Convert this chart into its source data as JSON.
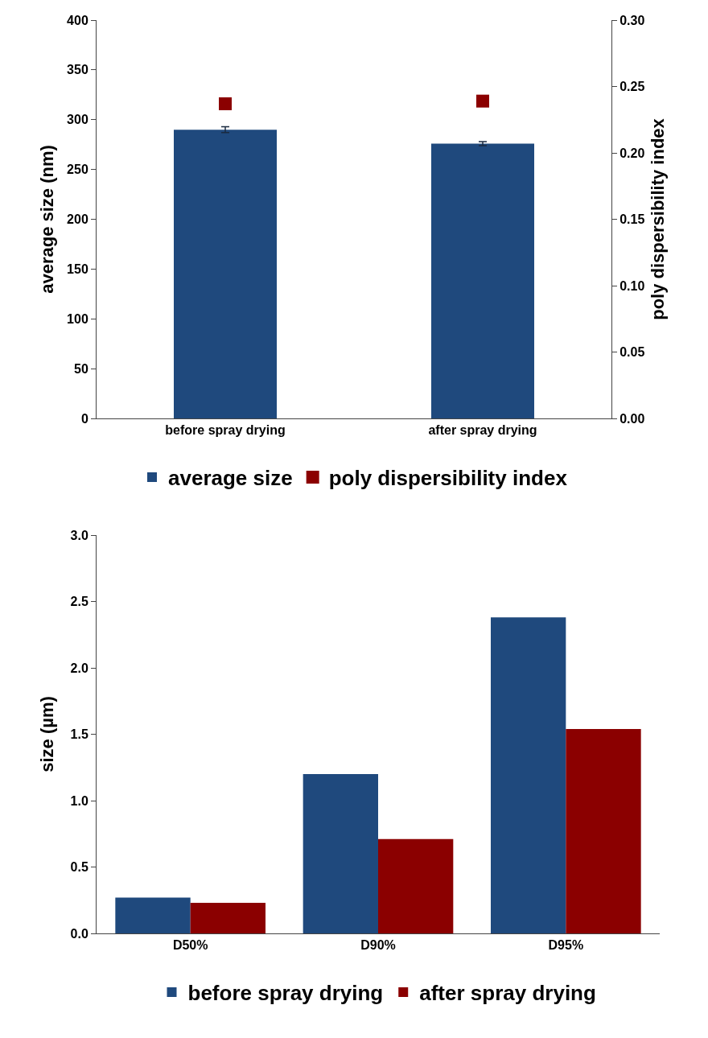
{
  "chart_data": [
    {
      "type": "bar",
      "categories": [
        "before spray drying",
        "after spray drying"
      ],
      "ylabel": "average size (nm)",
      "y2label": "poly dispersibility index",
      "ylim": [
        0,
        400
      ],
      "yticks": [
        0,
        50,
        100,
        150,
        200,
        250,
        300,
        350,
        400
      ],
      "y2lim": [
        0,
        0.3
      ],
      "y2ticks": [
        {
          "value": 0,
          "label": "0.00"
        },
        {
          "value": 0.05,
          "label": "0.05"
        },
        {
          "value": 0.1,
          "label": "0.10"
        },
        {
          "value": 0.15,
          "label": "0.15"
        },
        {
          "value": 0.2,
          "label": "0.20"
        },
        {
          "value": 0.25,
          "label": "0.25"
        },
        {
          "value": 0.3,
          "label": "0.30"
        }
      ],
      "grid": false,
      "legend": "bottom",
      "marker": "square",
      "series": [
        {
          "name": "average size",
          "color": "#1f497d",
          "values": [
            290,
            276
          ],
          "errors": [
            3,
            2
          ]
        },
        {
          "name": "poly dispersibility index",
          "type": "scatter",
          "axis": "y2",
          "color": "#8b0000",
          "values": [
            0.237,
            0.239
          ]
        }
      ]
    },
    {
      "type": "bar",
      "categories": [
        "D50%",
        "D90%",
        "D95%"
      ],
      "ylabel": "size (µm)",
      "ylim": [
        0,
        3
      ],
      "yticks": [
        {
          "value": 0,
          "label": "0.0"
        },
        {
          "value": 0.5,
          "label": "0.5"
        },
        {
          "value": 1,
          "label": "1.0"
        },
        {
          "value": 1.5,
          "label": "1.5"
        },
        {
          "value": 2,
          "label": "2.0"
        },
        {
          "value": 2.5,
          "label": "2.5"
        },
        {
          "value": 3,
          "label": "3.0"
        }
      ],
      "grid": false,
      "legend": "bottom",
      "series": [
        {
          "name": "before spray drying",
          "color": "#1f497d",
          "values": [
            0.27,
            1.2,
            2.38
          ]
        },
        {
          "name": "after spray drying",
          "color": "#8b0000",
          "values": [
            0.23,
            0.71,
            1.54
          ]
        }
      ]
    }
  ]
}
